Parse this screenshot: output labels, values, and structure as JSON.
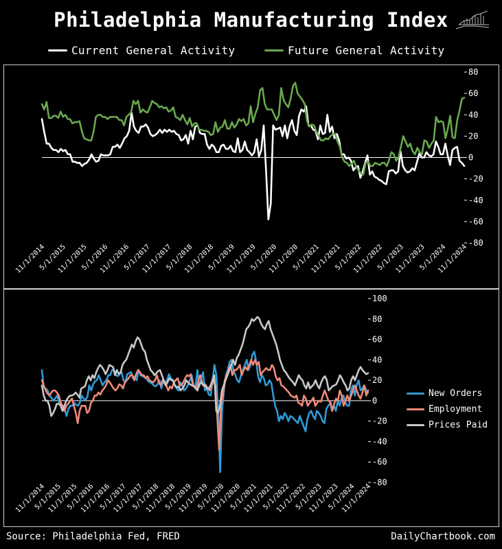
{
  "title": "Philadelphia Manufacturing Index",
  "source": "Source: Philadelphia Fed, FRED",
  "site": "DailyChartbook.com",
  "colors": {
    "white": "#ffffff",
    "green": "#6aa84f",
    "blue": "#2f9bd6",
    "salmon": "#f08a7a",
    "gray": "#c8c8c8"
  },
  "chart_data": [
    {
      "type": "line",
      "x_ticks": [
        "11/1/2014",
        "5/1/2015",
        "11/1/2015",
        "5/1/2016",
        "11/1/2016",
        "5/1/2017",
        "11/1/2017",
        "5/1/2018",
        "11/1/2018",
        "5/1/2019",
        "11/1/2019",
        "5/1/2020",
        "11/1/2020",
        "5/1/2021",
        "11/1/2021",
        "5/1/2022",
        "11/1/2022",
        "5/1/2023",
        "11/1/2023",
        "5/1/2024",
        "11/1/2024"
      ],
      "x_range": [
        "2014-11",
        "2024-11"
      ],
      "ylim": [
        -80,
        80
      ],
      "y_ticks": [
        80,
        60,
        40,
        20,
        0,
        -20,
        -40,
        -60,
        -80
      ],
      "legend_position": "top",
      "series": [
        {
          "name": "Current General Activity",
          "color": "#ffffff",
          "values": [
            36,
            24,
            13,
            13,
            9,
            7,
            7,
            5,
            8,
            6,
            7,
            3,
            3,
            -4,
            -4,
            -5,
            -5,
            -8,
            -6,
            -5,
            -2,
            3,
            -1,
            -4,
            -3,
            3,
            2,
            2,
            2,
            3,
            10,
            10,
            12,
            9,
            13,
            18,
            20,
            25,
            42,
            29,
            25,
            23,
            29,
            29,
            31,
            28,
            22,
            20,
            21,
            23,
            26,
            23,
            26,
            24,
            26,
            24,
            25,
            22,
            21,
            16,
            17,
            21,
            13,
            25,
            17,
            29,
            30,
            23,
            22,
            22,
            12,
            8,
            12,
            10,
            5,
            5,
            11,
            12,
            8,
            8,
            11,
            6,
            5,
            18,
            5,
            7,
            15,
            7,
            5,
            2,
            5,
            17,
            1,
            7,
            30,
            -12,
            -58,
            -43,
            30,
            26,
            27,
            28,
            20,
            30,
            18,
            29,
            35,
            25,
            21,
            39,
            45,
            43,
            48,
            30,
            30,
            26,
            25,
            17,
            30,
            22,
            23,
            40,
            24,
            29,
            18,
            22,
            16,
            3,
            3,
            -1,
            0,
            -3,
            -12,
            -9,
            -8,
            -19,
            -13,
            -5,
            2,
            -16,
            -13,
            -18,
            -19,
            -21,
            -22,
            -24,
            -25,
            -13,
            -12,
            -12,
            -15,
            -13,
            6,
            -8,
            -12,
            -14,
            -13,
            -10,
            -12,
            -4,
            4,
            0,
            0,
            5,
            2,
            1,
            3,
            15,
            10,
            3,
            3,
            13,
            2,
            -7,
            7,
            9,
            10,
            -3,
            -5,
            -8
          ]
        },
        {
          "name": "Future General Activity",
          "color": "#6aa84f",
          "values": [
            50,
            45,
            52,
            37,
            37,
            39,
            39,
            37,
            43,
            38,
            40,
            36,
            36,
            32,
            33,
            33,
            34,
            25,
            18,
            17,
            16,
            16,
            24,
            38,
            40,
            40,
            38,
            38,
            36,
            38,
            38,
            38,
            38,
            35,
            35,
            30,
            38,
            40,
            42,
            53,
            50,
            53,
            42,
            45,
            43,
            42,
            47,
            53,
            51,
            50,
            47,
            48,
            46,
            47,
            43,
            44,
            47,
            38,
            37,
            35,
            40,
            35,
            31,
            37,
            29,
            32,
            32,
            26,
            26,
            25,
            25,
            24,
            21,
            22,
            33,
            24,
            28,
            29,
            35,
            27,
            27,
            33,
            28,
            31,
            36,
            34,
            36,
            30,
            32,
            48,
            33,
            41,
            47,
            63,
            65,
            50,
            45,
            45,
            45,
            40,
            35,
            40,
            65,
            54,
            50,
            47,
            55,
            67,
            70,
            60,
            57,
            54,
            50,
            34,
            29,
            31,
            30,
            24,
            20,
            16,
            16,
            18,
            17,
            20,
            22,
            22,
            15,
            10,
            0,
            -4,
            -5,
            -8,
            -6,
            -3,
            -9,
            -12,
            -15,
            -16,
            -5,
            -4,
            -8,
            -8,
            -5,
            -6,
            -7,
            -5,
            -5,
            -8,
            -2,
            5,
            3,
            -3,
            0,
            10,
            20,
            15,
            10,
            13,
            6,
            3,
            9,
            5,
            3,
            16,
            15,
            9,
            13,
            16,
            38,
            33,
            34,
            33,
            18,
            27,
            39,
            19,
            18,
            35,
            44,
            55,
            56
          ]
        }
      ]
    },
    {
      "type": "line",
      "x_ticks": [
        "11/1/2014",
        "5/1/2015",
        "11/1/2015",
        "5/1/2016",
        "11/1/2016",
        "5/1/2017",
        "11/1/2017",
        "5/1/2018",
        "11/1/2018",
        "5/1/2019",
        "11/1/2019",
        "5/1/2020",
        "11/1/2020",
        "5/1/2021",
        "11/1/2021",
        "5/1/2022",
        "11/1/2022",
        "5/1/2023",
        "11/1/2023",
        "5/1/2024",
        "11/1/2024"
      ],
      "x_range": [
        "2014-11",
        "2024-11"
      ],
      "ylim": [
        -80,
        100
      ],
      "y_ticks": [
        100,
        80,
        60,
        40,
        20,
        0,
        -20,
        -40,
        -60,
        -80
      ],
      "legend_position": "right",
      "series": [
        {
          "name": "New Orders",
          "color": "#2f9bd6",
          "values": [
            30,
            13,
            12,
            10,
            5,
            3,
            0,
            2,
            5,
            -1,
            -5,
            -8,
            -8,
            -15,
            -8,
            -5,
            -5,
            -2,
            -4,
            -5,
            -2,
            5,
            2,
            1,
            4,
            15,
            10,
            16,
            19,
            20,
            25,
            20,
            15,
            18,
            20,
            25,
            25,
            30,
            30,
            25,
            24,
            26,
            28,
            20,
            18,
            26,
            27,
            28,
            22,
            24,
            20,
            30,
            25,
            24,
            23,
            22,
            19,
            18,
            17,
            15,
            14,
            16,
            20,
            12,
            20,
            18,
            20,
            26,
            22,
            20,
            15,
            12,
            10,
            18,
            15,
            10,
            12,
            15,
            20,
            25,
            15,
            14,
            30,
            14,
            22,
            28,
            10,
            12,
            6,
            5,
            20,
            35,
            25,
            -12,
            -70,
            -10,
            10,
            25,
            30,
            38,
            40,
            30,
            25,
            20,
            18,
            25,
            30,
            35,
            40,
            30,
            35,
            45,
            48,
            38,
            24,
            18,
            25,
            22,
            15,
            16,
            20,
            17,
            5,
            -5,
            -10,
            -20,
            -15,
            -18,
            -12,
            -15,
            -20,
            -15,
            -16,
            -18,
            -20,
            -22,
            -15,
            -20,
            -25,
            -30,
            -18,
            -12,
            -10,
            -15,
            -18,
            -10,
            -12,
            -15,
            -20,
            -22,
            -8,
            -5,
            -2,
            -10,
            -5,
            -10,
            0,
            -5,
            2,
            5,
            -2,
            -5,
            -5,
            10,
            15,
            5,
            15,
            20,
            10,
            12,
            15,
            10,
            8
          ]
        },
        {
          "name": "Employment",
          "color": "#f08a7a",
          "values": [
            20,
            15,
            10,
            7,
            5,
            8,
            10,
            10,
            8,
            5,
            -2,
            -5,
            -10,
            -5,
            -3,
            0,
            2,
            -5,
            -12,
            -22,
            -10,
            -5,
            -5,
            -5,
            -12,
            -10,
            -2,
            0,
            5,
            5,
            8,
            6,
            10,
            12,
            15,
            20,
            18,
            15,
            12,
            10,
            12,
            16,
            15,
            12,
            18,
            20,
            22,
            25,
            25,
            20,
            26,
            30,
            28,
            25,
            25,
            22,
            24,
            20,
            19,
            18,
            20,
            25,
            18,
            15,
            20,
            17,
            15,
            10,
            14,
            12,
            18,
            20,
            22,
            16,
            15,
            18,
            22,
            25,
            24,
            26,
            15,
            14,
            12,
            20,
            25,
            18,
            14,
            15,
            12,
            10,
            14,
            20,
            15,
            -15,
            -48,
            -5,
            5,
            20,
            25,
            30,
            35,
            25,
            30,
            30,
            32,
            35,
            25,
            30,
            33,
            30,
            35,
            40,
            35,
            40,
            35,
            38,
            25,
            28,
            30,
            32,
            30,
            30,
            35,
            32,
            24,
            20,
            22,
            15,
            14,
            12,
            10,
            8,
            5,
            4,
            3,
            5,
            -2,
            -3,
            -5,
            5,
            2,
            -5,
            -2,
            0,
            3,
            -5,
            -2,
            0,
            -1,
            5,
            10,
            5,
            0,
            -1,
            -10,
            -3,
            2,
            0,
            10,
            5,
            -5,
            0,
            5,
            0,
            5,
            10,
            15,
            10,
            5,
            2,
            8,
            15,
            5,
            10
          ]
        },
        {
          "name": "Prices Paid",
          "color": "#c8c8c8",
          "values": [
            15,
            5,
            0,
            0,
            -5,
            -15,
            -12,
            -8,
            -3,
            -3,
            -5,
            -10,
            -5,
            0,
            3,
            5,
            5,
            6,
            8,
            6,
            3,
            12,
            13,
            14,
            20,
            24,
            20,
            25,
            22,
            28,
            32,
            35,
            33,
            30,
            26,
            30,
            35,
            34,
            33,
            25,
            30,
            26,
            28,
            35,
            38,
            40,
            45,
            50,
            55,
            52,
            58,
            62,
            60,
            55,
            50,
            48,
            40,
            35,
            30,
            28,
            25,
            27,
            29,
            30,
            25,
            20,
            15,
            18,
            22,
            20,
            20,
            15,
            13,
            14,
            10,
            12,
            15,
            20,
            18,
            16,
            15,
            14,
            12,
            10,
            16,
            18,
            15,
            16,
            12,
            12,
            15,
            20,
            25,
            -10,
            -12,
            -5,
            10,
            15,
            20,
            25,
            30,
            35,
            40,
            35,
            42,
            45,
            50,
            55,
            62,
            70,
            72,
            75,
            80,
            78,
            80,
            82,
            80,
            75,
            72,
            70,
            75,
            78,
            70,
            65,
            60,
            55,
            48,
            40,
            35,
            30,
            28,
            25,
            22,
            20,
            18,
            15,
            20,
            25,
            22,
            20,
            15,
            12,
            18,
            12,
            14,
            16,
            20,
            15,
            12,
            18,
            22,
            24,
            20,
            10,
            12,
            14,
            15,
            16,
            20,
            25,
            22,
            18,
            15,
            10,
            12,
            20,
            24,
            20,
            25,
            30,
            33,
            30,
            28,
            26,
            27
          ]
        }
      ]
    }
  ]
}
